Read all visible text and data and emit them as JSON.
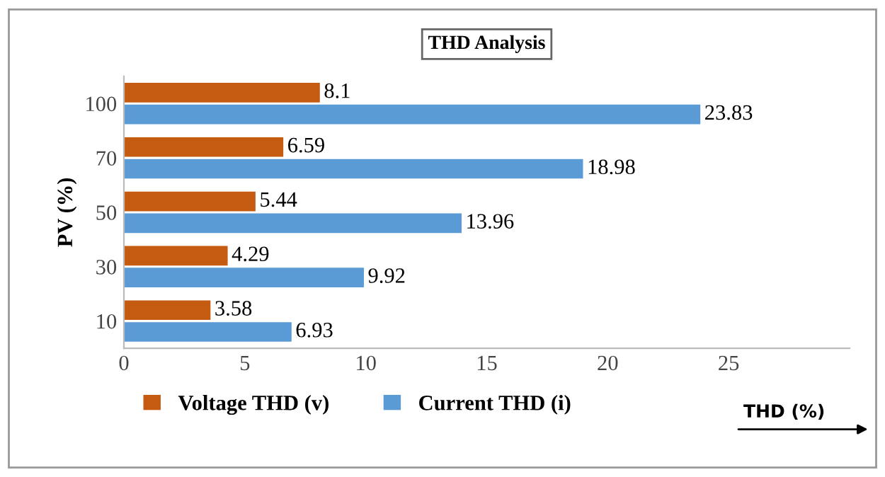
{
  "chart_data": {
    "type": "bar",
    "orientation": "horizontal",
    "title": "THD Analysis",
    "xlabel": "THD (%)",
    "ylabel": "PV (%)",
    "categories": [
      "100",
      "70",
      "50",
      "30",
      "10"
    ],
    "series": [
      {
        "name": "Voltage THD (v)",
        "color": "#c55a11",
        "values": [
          8.1,
          6.59,
          5.44,
          4.29,
          3.58
        ]
      },
      {
        "name": "Current THD (i)",
        "color": "#5b9bd5",
        "values": [
          23.83,
          18.98,
          13.96,
          9.92,
          6.93
        ]
      }
    ],
    "xlim": [
      0,
      30
    ],
    "xticks": [
      0,
      5,
      10,
      15,
      20,
      25
    ],
    "data_labels": true,
    "legend": "bottom",
    "grid": false
  }
}
